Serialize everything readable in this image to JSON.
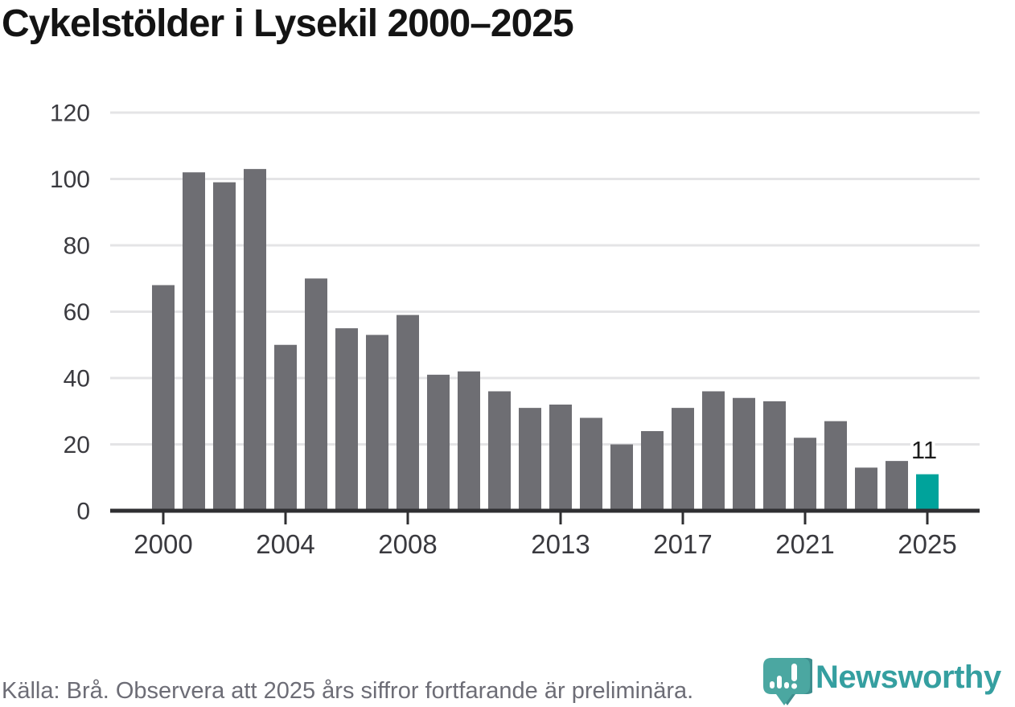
{
  "title": "Cykelstölder i Lysekil 2000–2025",
  "chart_data": {
    "type": "bar",
    "title": "Cykelstölder i Lysekil 2000–2025",
    "categories": [
      "2000",
      "2001",
      "2002",
      "2003",
      "2004",
      "2005",
      "2006",
      "2007",
      "2008",
      "2009",
      "2010",
      "2011",
      "2012",
      "2013",
      "2014",
      "2015",
      "2016",
      "2017",
      "2018",
      "2019",
      "2020",
      "2021",
      "2022",
      "2023",
      "2024",
      "2025"
    ],
    "values": [
      68,
      102,
      99,
      103,
      50,
      70,
      55,
      53,
      59,
      41,
      42,
      36,
      31,
      32,
      28,
      20,
      24,
      31,
      36,
      34,
      33,
      22,
      27,
      13,
      15,
      11
    ],
    "xlabel": "",
    "ylabel": "",
    "ylim": [
      0,
      120
    ],
    "yticks": [
      0,
      20,
      40,
      60,
      80,
      100,
      120
    ],
    "xtick_labels": [
      "2000",
      "2004",
      "2008",
      "2013",
      "2017",
      "2021",
      "2025"
    ],
    "grid": "horizontal",
    "legend_position": "none",
    "highlight_category": "2025",
    "highlight_value_label": "11",
    "bar_color": "#6e6e73",
    "highlight_color": "#00a39b",
    "gridline_color": "#e4e4e6",
    "axis_color": "#2f2f32",
    "tick_label_color": "#3a3a3f",
    "value_label_color": "#1c1c1c"
  },
  "footer": {
    "source": "Källa: Brå. Observera att 2025 års siffror fortfarande är preliminära.",
    "brand": "Newsworthy"
  },
  "logo": {
    "pin_color": "#4ba7a1",
    "pin_shadow_color": "#3e8e8e",
    "wordmark_color": "#359fa0"
  }
}
